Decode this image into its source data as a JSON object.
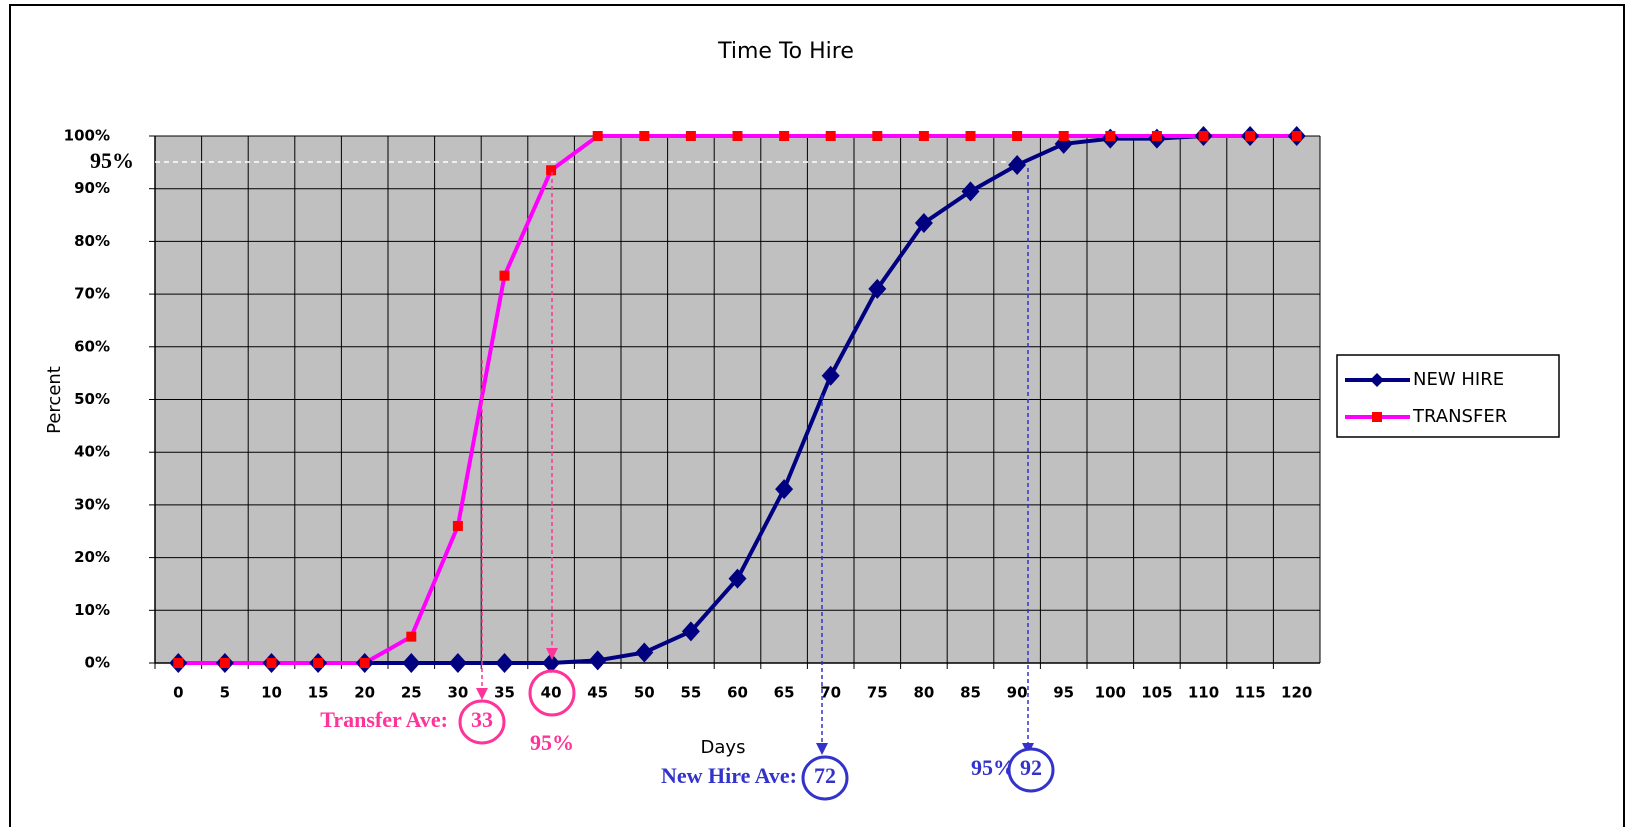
{
  "chart_data": {
    "type": "line",
    "title": "Time To Hire",
    "x_label": "Days",
    "y_label": "Percent",
    "categories": [
      "0",
      "5",
      "10",
      "15",
      "20",
      "25",
      "30",
      "35",
      "40",
      "45",
      "50",
      "55",
      "60",
      "65",
      "70",
      "75",
      "80",
      "85",
      "90",
      "95",
      "100",
      "105",
      "110",
      "115",
      "120"
    ],
    "series": [
      {
        "name": "NEW HIRE",
        "color": "#000080",
        "marker": "diamond",
        "values": [
          0,
          0,
          0,
          0,
          0,
          0,
          0,
          0,
          0,
          0.5,
          2,
          6,
          16,
          33,
          54.5,
          71,
          83.5,
          89.5,
          94.5,
          98.5,
          99.5,
          99.5,
          100,
          100,
          100
        ]
      },
      {
        "name": "TRANSFER",
        "color": "#ff00ff",
        "marker_color": "#ff0000",
        "marker": "square",
        "values": [
          0,
          0,
          0,
          0,
          0,
          5,
          26,
          73.5,
          93.5,
          100,
          100,
          100,
          100,
          100,
          100,
          100,
          100,
          100,
          100,
          100,
          100,
          100,
          100,
          100,
          100
        ]
      }
    ],
    "ylim": [
      0,
      100
    ],
    "yticks": [
      {
        "value": 0,
        "label": "0%"
      },
      {
        "value": 10,
        "label": "10%"
      },
      {
        "value": 20,
        "label": "20%"
      },
      {
        "value": 30,
        "label": "30%"
      },
      {
        "value": 40,
        "label": "40%"
      },
      {
        "value": 50,
        "label": "50%"
      },
      {
        "value": 60,
        "label": "60%"
      },
      {
        "value": 70,
        "label": "70%"
      },
      {
        "value": 80,
        "label": "80%"
      },
      {
        "value": 90,
        "label": "90%"
      },
      {
        "value": 100,
        "label": "100%"
      }
    ],
    "grid": true,
    "plot_background": "#c0c0c0",
    "legend": "right",
    "annotations": [
      {
        "text": "95%",
        "color": "#000000"
      },
      {
        "text": "Transfer Ave:",
        "color": "#ff3399"
      },
      {
        "text": "33",
        "color": "#ff3399"
      },
      {
        "text": "95%",
        "color": "#ff3399"
      },
      {
        "text": "New Hire Ave:",
        "color": "#3333cc"
      },
      {
        "text": "72",
        "color": "#3333cc"
      },
      {
        "text": "95%",
        "color": "#3333cc"
      },
      {
        "text": "92",
        "color": "#3333cc"
      }
    ]
  }
}
